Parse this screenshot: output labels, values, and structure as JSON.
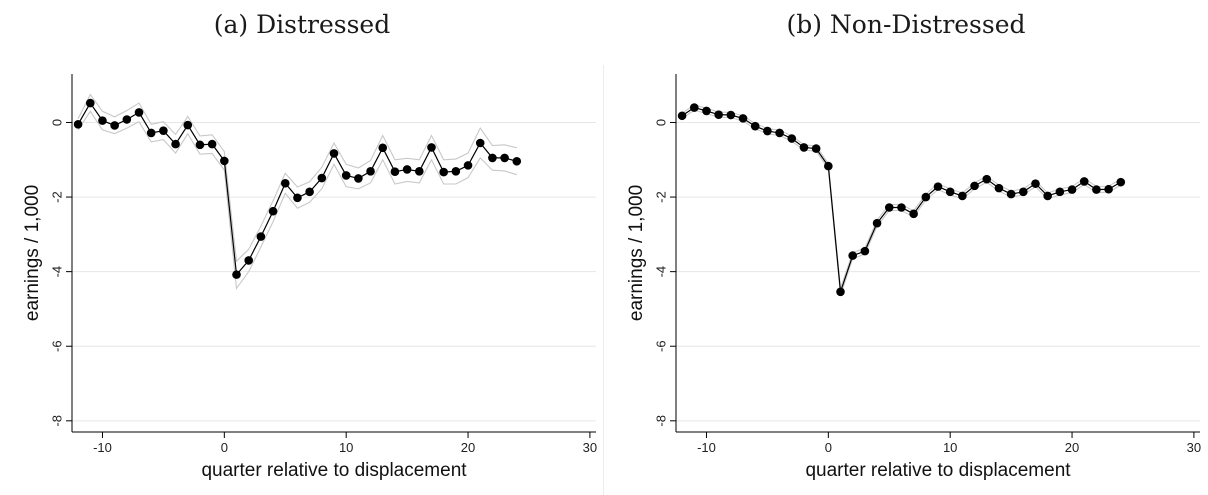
{
  "chart_data": [
    {
      "type": "line",
      "title": "(a) Distressed",
      "xlabel": "quarter relative to displacement",
      "ylabel": "earnings / 1,000",
      "xlim": [
        -12.5,
        30.5
      ],
      "ylim": [
        -8.3,
        1.3
      ],
      "xticks": [
        -10,
        0,
        10,
        20,
        30
      ],
      "yticks": [
        0,
        -2,
        -4,
        -6,
        -8
      ],
      "grid": true,
      "series": [
        {
          "role": "estimate",
          "x": [
            -12,
            -11,
            -10,
            -9,
            -8,
            -7,
            -6,
            -5,
            -4,
            -3,
            -2,
            -1,
            0,
            1,
            2,
            3,
            4,
            5,
            6,
            7,
            8,
            9,
            10,
            11,
            12,
            13,
            14,
            15,
            16,
            17,
            18,
            19,
            20,
            21,
            22,
            23,
            24
          ],
          "y": [
            -0.05,
            0.52,
            0.05,
            -0.08,
            0.08,
            0.27,
            -0.28,
            -0.22,
            -0.58,
            -0.07,
            -0.6,
            -0.58,
            -1.03,
            -4.08,
            -3.7,
            -3.06,
            -2.38,
            -1.63,
            -2.02,
            -1.86,
            -1.49,
            -0.83,
            -1.42,
            -1.5,
            -1.31,
            -0.68,
            -1.32,
            -1.26,
            -1.31,
            -0.67,
            -1.33,
            -1.31,
            -1.15,
            -0.55,
            -0.95,
            -0.95,
            -1.04
          ]
        },
        {
          "role": "ci-upper",
          "x": [
            -12,
            -11,
            -10,
            -9,
            -8,
            -7,
            -6,
            -5,
            -4,
            -3,
            -2,
            -1,
            0,
            1,
            2,
            3,
            4,
            5,
            6,
            7,
            8,
            9,
            10,
            11,
            12,
            13,
            14,
            15,
            16,
            17,
            18,
            19,
            20,
            21,
            22,
            23,
            24
          ],
          "y": [
            0.1,
            0.75,
            0.3,
            0.15,
            0.32,
            0.52,
            -0.05,
            0.02,
            -0.32,
            0.16,
            -0.36,
            -0.33,
            -0.78,
            -3.72,
            -3.4,
            -2.78,
            -2.1,
            -1.36,
            -1.73,
            -1.59,
            -1.2,
            -0.55,
            -1.12,
            -1.22,
            -1.02,
            -0.35,
            -1.0,
            -0.96,
            -1.0,
            -0.35,
            -1.0,
            -0.98,
            -0.82,
            -0.15,
            -0.62,
            -0.6,
            -0.68
          ]
        },
        {
          "role": "ci-lower",
          "x": [
            -12,
            -11,
            -10,
            -9,
            -8,
            -7,
            -6,
            -5,
            -4,
            -3,
            -2,
            -1,
            0,
            1,
            2,
            3,
            4,
            5,
            6,
            7,
            8,
            9,
            10,
            11,
            12,
            13,
            14,
            15,
            16,
            17,
            18,
            19,
            20,
            21,
            22,
            23,
            24
          ],
          "y": [
            -0.2,
            0.3,
            -0.2,
            -0.3,
            -0.15,
            0.02,
            -0.52,
            -0.46,
            -0.82,
            -0.3,
            -0.85,
            -0.83,
            -1.28,
            -4.45,
            -4.0,
            -3.34,
            -2.66,
            -1.9,
            -2.3,
            -2.14,
            -1.78,
            -1.12,
            -1.72,
            -1.78,
            -1.62,
            -1.0,
            -1.65,
            -1.58,
            -1.62,
            -1.0,
            -1.65,
            -1.65,
            -1.48,
            -0.95,
            -1.28,
            -1.3,
            -1.4
          ]
        }
      ]
    },
    {
      "type": "line",
      "title": "(b) Non-Distressed",
      "xlabel": "quarter relative to displacement",
      "ylabel": "earnings / 1,000",
      "xlim": [
        -12.5,
        30.5
      ],
      "ylim": [
        -8.3,
        1.3
      ],
      "xticks": [
        -10,
        0,
        10,
        20,
        30
      ],
      "yticks": [
        0,
        -2,
        -4,
        -6,
        -8
      ],
      "grid": true,
      "series": [
        {
          "role": "estimate",
          "x": [
            -12,
            -11,
            -10,
            -9,
            -8,
            -7,
            -6,
            -5,
            -4,
            -3,
            -2,
            -1,
            0,
            1,
            2,
            3,
            4,
            5,
            6,
            7,
            8,
            9,
            10,
            11,
            12,
            13,
            14,
            15,
            16,
            17,
            18,
            19,
            20,
            21,
            22,
            23,
            24
          ],
          "y": [
            0.18,
            0.4,
            0.31,
            0.21,
            0.2,
            0.11,
            -0.1,
            -0.23,
            -0.28,
            -0.43,
            -0.67,
            -0.7,
            -1.17,
            -4.54,
            -3.57,
            -3.45,
            -2.7,
            -2.28,
            -2.28,
            -2.45,
            -2.0,
            -1.72,
            -1.86,
            -1.97,
            -1.7,
            -1.52,
            -1.76,
            -1.92,
            -1.86,
            -1.64,
            -1.97,
            -1.86,
            -1.8,
            -1.58,
            -1.8,
            -1.79,
            -1.6
          ]
        },
        {
          "role": "ci-upper",
          "x": [
            -12,
            -11,
            -10,
            -9,
            -8,
            -7,
            -6,
            -5,
            -4,
            -3,
            -2,
            -1,
            0,
            1,
            2,
            3,
            4,
            5,
            6,
            7,
            8,
            9,
            10,
            11,
            12,
            13,
            14,
            15,
            16,
            17,
            18,
            19,
            20,
            21,
            22,
            23,
            24
          ],
          "y": [
            0.25,
            0.47,
            0.38,
            0.28,
            0.27,
            0.18,
            -0.03,
            -0.16,
            -0.21,
            -0.36,
            -0.6,
            -0.63,
            -1.1,
            -4.45,
            -3.49,
            -3.37,
            -2.62,
            -2.2,
            -2.2,
            -2.37,
            -1.92,
            -1.64,
            -1.78,
            -1.89,
            -1.62,
            -1.44,
            -1.68,
            -1.84,
            -1.78,
            -1.56,
            -1.89,
            -1.78,
            -1.72,
            -1.5,
            -1.72,
            -1.71,
            -1.52
          ]
        },
        {
          "role": "ci-lower",
          "x": [
            -12,
            -11,
            -10,
            -9,
            -8,
            -7,
            -6,
            -5,
            -4,
            -3,
            -2,
            -1,
            0,
            1,
            2,
            3,
            4,
            5,
            6,
            7,
            8,
            9,
            10,
            11,
            12,
            13,
            14,
            15,
            16,
            17,
            18,
            19,
            20,
            21,
            22,
            23,
            24
          ],
          "y": [
            0.11,
            0.33,
            0.24,
            0.14,
            0.13,
            0.04,
            -0.17,
            -0.3,
            -0.35,
            -0.5,
            -0.74,
            -0.77,
            -1.24,
            -4.63,
            -3.65,
            -3.53,
            -2.78,
            -2.36,
            -2.36,
            -2.53,
            -2.08,
            -1.8,
            -1.94,
            -2.05,
            -1.78,
            -1.6,
            -1.84,
            -2.0,
            -1.94,
            -1.72,
            -2.05,
            -1.94,
            -1.88,
            -1.66,
            -1.88,
            -1.87,
            -1.68
          ]
        }
      ]
    }
  ]
}
